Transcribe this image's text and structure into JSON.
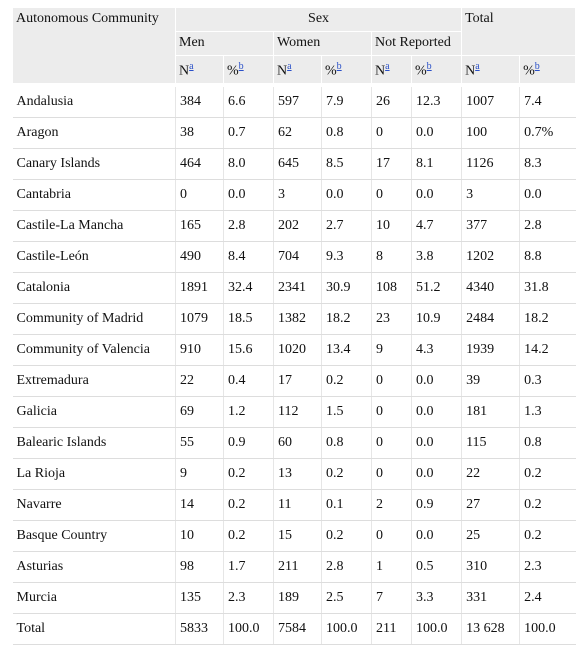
{
  "table": {
    "header": {
      "first": "Autonomous Community",
      "group": "Sex",
      "total": "Total",
      "subgroups": [
        "Men",
        "Women",
        "Not Reported"
      ],
      "columns": [
        {
          "text": "N",
          "note": "a"
        },
        {
          "text": "%",
          "note": "b"
        },
        {
          "text": "N",
          "note": "a"
        },
        {
          "text": "%",
          "note": "b"
        },
        {
          "text": "N",
          "note": "a"
        },
        {
          "text": "%",
          "note": "b"
        },
        {
          "text": "N",
          "note": "a"
        },
        {
          "text": "%",
          "note": "b"
        }
      ]
    },
    "rows": [
      [
        "Andalusia",
        "384",
        "6.6",
        "597",
        "7.9",
        "26",
        "12.3",
        "1007",
        "7.4"
      ],
      [
        "Aragon",
        "38",
        "0.7",
        "62",
        "0.8",
        "0",
        "0.0",
        "100",
        "0.7%"
      ],
      [
        "Canary Islands",
        "464",
        "8.0",
        "645",
        "8.5",
        "17",
        "8.1",
        "1126",
        "8.3"
      ],
      [
        "Cantabria",
        "0",
        "0.0",
        "3",
        "0.0",
        "0",
        "0.0",
        "3",
        "0.0"
      ],
      [
        "Castile-La Mancha",
        "165",
        "2.8",
        "202",
        "2.7",
        "10",
        "4.7",
        "377",
        "2.8"
      ],
      [
        "Castile-León",
        "490",
        "8.4",
        "704",
        "9.3",
        "8",
        "3.8",
        "1202",
        "8.8"
      ],
      [
        "Catalonia",
        "1891",
        "32.4",
        "2341",
        "30.9",
        "108",
        "51.2",
        "4340",
        "31.8"
      ],
      [
        "Community of Madrid",
        "1079",
        "18.5",
        "1382",
        "18.2",
        "23",
        "10.9",
        "2484",
        "18.2"
      ],
      [
        "Community of Valencia",
        "910",
        "15.6",
        "1020",
        "13.4",
        "9",
        "4.3",
        "1939",
        "14.2"
      ],
      [
        "Extremadura",
        "22",
        "0.4",
        "17",
        "0.2",
        "0",
        "0.0",
        "39",
        "0.3"
      ],
      [
        "Galicia",
        "69",
        "1.2",
        "112",
        "1.5",
        "0",
        "0.0",
        "181",
        "1.3"
      ],
      [
        "Balearic Islands",
        "55",
        "0.9",
        "60",
        "0.8",
        "0",
        "0.0",
        "115",
        "0.8"
      ],
      [
        "La Rioja",
        "9",
        "0.2",
        "13",
        "0.2",
        "0",
        "0.0",
        "22",
        "0.2"
      ],
      [
        "Navarre",
        "14",
        "0.2",
        "11",
        "0.1",
        "2",
        "0.9",
        "27",
        "0.2"
      ],
      [
        "Basque Country",
        "10",
        "0.2",
        "15",
        "0.2",
        "0",
        "0.0",
        "25",
        "0.2"
      ],
      [
        "Asturias",
        "98",
        "1.7",
        "211",
        "2.8",
        "1",
        "0.5",
        "310",
        "2.3"
      ],
      [
        "Murcia",
        "135",
        "2.3",
        "189",
        "2.5",
        "7",
        "3.3",
        "331",
        "2.4"
      ],
      [
        "Total",
        "5833",
        "100.0",
        "7584",
        "100.0",
        "211",
        "100.0",
        "13 628",
        "100.0"
      ]
    ]
  }
}
